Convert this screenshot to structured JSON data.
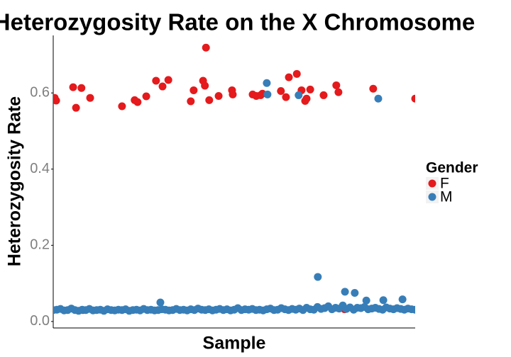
{
  "chart_data": {
    "type": "scatter",
    "title": "Heterozygosity Rate on the X Chromosome",
    "x_label": "Sample",
    "y_label": "Heterozygosity Rate",
    "legend_title": "Gender",
    "legend": "right",
    "grid": false,
    "xlim": [
      0,
      100
    ],
    "ylim": [
      -0.017,
      0.751
    ],
    "yticks": [
      {
        "value": 0,
        "label": "0.0"
      },
      0.2,
      0.4,
      0.6
    ],
    "series": [
      {
        "name": "F",
        "color": "#e41a1c",
        "x": [
          0.4,
          0.8,
          5.5,
          6.3,
          7.8,
          10.2,
          19,
          22.5,
          23.3,
          25.7,
          28.4,
          30.2,
          31.8,
          38,
          38.8,
          41.4,
          41.9,
          42.2,
          43.1,
          45.7,
          49.4,
          49.6,
          55.1,
          56.1,
          57.3,
          57.8,
          62.9,
          64.3,
          65.1,
          67.3,
          68.6,
          69.6,
          70,
          71,
          74.7,
          78.2,
          78.8,
          88.4,
          100,
          8.2,
          80.5
        ],
        "values": [
          0.587,
          0.58,
          0.615,
          0.561,
          0.613,
          0.587,
          0.565,
          0.581,
          0.576,
          0.591,
          0.632,
          0.617,
          0.634,
          0.578,
          0.607,
          0.632,
          0.619,
          0.719,
          0.581,
          0.592,
          0.607,
          0.596,
          0.596,
          0.592,
          0.594,
          0.598,
          0.605,
          0.589,
          0.641,
          0.65,
          0.607,
          0.579,
          0.585,
          0.609,
          0.594,
          0.62,
          0.602,
          0.611,
          0.585,
          0.03,
          0.032
        ]
      },
      {
        "name": "M",
        "color": "#377eb8",
        "x": [
          59,
          59.2,
          67.8,
          89.8,
          73.1,
          80.6,
          83.3,
          29.6,
          91.2,
          96.5,
          86.5,
          0,
          1,
          2,
          3,
          4,
          5,
          6,
          7,
          8,
          9,
          10,
          11,
          12,
          13,
          14,
          15,
          16,
          17,
          18,
          19,
          20,
          21,
          22,
          23,
          24,
          25,
          26,
          27,
          28,
          29,
          30,
          31,
          32,
          33,
          34,
          35,
          36,
          37,
          38,
          39,
          40,
          41,
          42,
          43,
          44,
          45,
          46,
          47,
          48,
          49,
          50,
          51,
          52,
          53,
          54,
          55,
          56,
          57,
          58,
          59,
          60,
          61,
          62,
          63,
          64,
          65,
          66,
          67,
          68,
          69,
          70,
          71,
          72,
          73,
          74,
          75,
          76,
          77,
          78,
          79,
          80,
          81,
          82,
          83,
          84,
          85,
          86,
          87,
          88,
          89,
          90,
          91,
          92,
          93,
          94,
          95,
          96,
          97,
          98,
          99,
          100
        ],
        "values": [
          0.626,
          0.596,
          0.594,
          0.585,
          0.117,
          0.078,
          0.075,
          0.05,
          0.056,
          0.058,
          0.055,
          0.03,
          0.031,
          0.033,
          0.029,
          0.03,
          0.034,
          0.03,
          0.028,
          0.031,
          0.03,
          0.033,
          0.029,
          0.03,
          0.031,
          0.028,
          0.032,
          0.03,
          0.029,
          0.031,
          0.03,
          0.032,
          0.028,
          0.03,
          0.031,
          0.029,
          0.033,
          0.03,
          0.031,
          0.029,
          0.03,
          0.032,
          0.031,
          0.029,
          0.03,
          0.033,
          0.03,
          0.031,
          0.029,
          0.032,
          0.03,
          0.034,
          0.031,
          0.03,
          0.032,
          0.029,
          0.031,
          0.033,
          0.03,
          0.032,
          0.029,
          0.031,
          0.035,
          0.03,
          0.032,
          0.031,
          0.033,
          0.03,
          0.031,
          0.029,
          0.032,
          0.034,
          0.03,
          0.031,
          0.035,
          0.032,
          0.03,
          0.033,
          0.031,
          0.034,
          0.03,
          0.036,
          0.032,
          0.031,
          0.038,
          0.033,
          0.035,
          0.04,
          0.032,
          0.036,
          0.034,
          0.042,
          0.033,
          0.037,
          0.031,
          0.036,
          0.035,
          0.038,
          0.032,
          0.034,
          0.036,
          0.033,
          0.031,
          0.037,
          0.034,
          0.032,
          0.035,
          0.033,
          0.031,
          0.034,
          0.032,
          0.031
        ]
      }
    ]
  }
}
